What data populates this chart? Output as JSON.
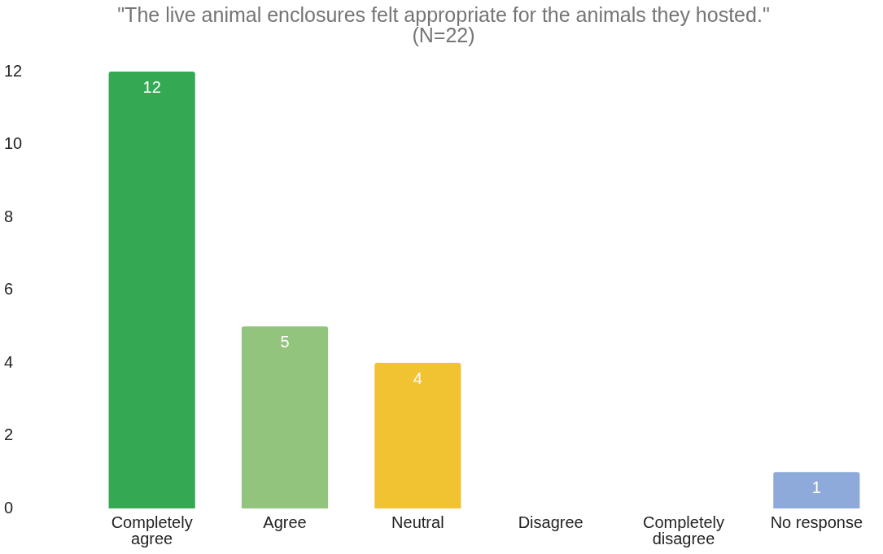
{
  "chart_data": {
    "type": "bar",
    "title": "\"The live animal enclosures felt appropriate for the animals they hosted.\"\n(N=22)",
    "categories": [
      "Completely agree",
      "Agree",
      "Neutral",
      "Disagree",
      "Completely disagree",
      "No response"
    ],
    "values": [
      12,
      5,
      4,
      0,
      0,
      1
    ],
    "colors": [
      "#34a853",
      "#93c47d",
      "#f1c232",
      "#e06666",
      "#cc0000",
      "#8eaadb"
    ],
    "value_labels": [
      "12",
      "5",
      "4",
      null,
      null,
      "1"
    ],
    "ylim": [
      0,
      12
    ],
    "yticks": [
      0,
      2,
      4,
      6,
      8,
      10,
      12
    ],
    "grid": false,
    "legend": false
  }
}
